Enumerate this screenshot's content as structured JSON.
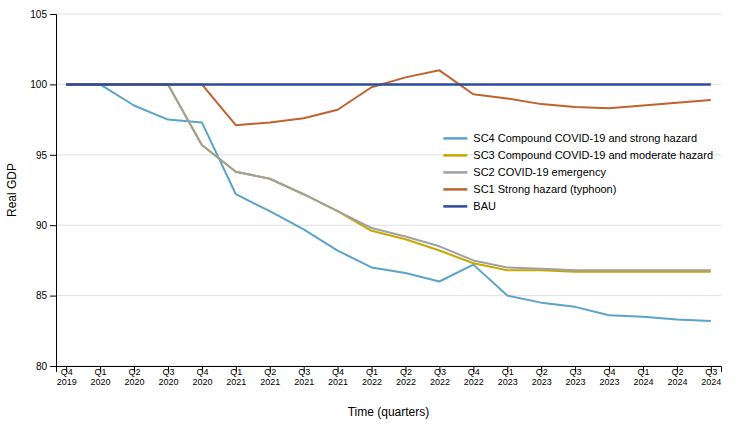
{
  "chart_data": {
    "type": "line",
    "x_label": "Time (quarters)",
    "y_label": "Real GDP",
    "categories": [
      "Q4\n2019",
      "Q1\n2020",
      "Q2\n2020",
      "Q3\n2020",
      "Q4\n2020",
      "Q1\n2021",
      "Q2\n2021",
      "Q3\n2021",
      "Q4\n2021",
      "Q1\n2022",
      "Q2\n2022",
      "Q3\n2022",
      "Q4\n2022",
      "Q1\n2023",
      "Q2\n2023",
      "Q3\n2023",
      "Q4\n2023",
      "Q1\n2024",
      "Q2\n2024",
      "Q3\n2024"
    ],
    "series": [
      {
        "name": "SC4 Compound COVID-19 and strong hazard",
        "color": "#5ba3c9",
        "values": [
          100,
          100,
          98.5,
          97.5,
          97.3,
          92.2,
          91.0,
          89.7,
          88.2,
          87.0,
          86.6,
          86.0,
          87.2,
          85.0,
          84.5,
          84.2,
          83.6,
          83.5,
          83.3,
          83.2
        ]
      },
      {
        "name": "SC3 Compound COVID-19 and moderate hazard",
        "color": "#c8a800",
        "values": [
          100,
          100,
          100,
          100,
          95.7,
          93.8,
          93.3,
          92.2,
          91.0,
          89.6,
          89.0,
          88.2,
          87.3,
          86.8,
          86.8,
          86.7,
          86.7,
          86.7,
          86.7,
          86.7
        ]
      },
      {
        "name": "SC2 COVID-19 emergency",
        "color": "#a0a0a0",
        "values": [
          100,
          100,
          100,
          100,
          95.7,
          93.8,
          93.3,
          92.2,
          91.0,
          89.8,
          89.2,
          88.5,
          87.5,
          87.0,
          86.9,
          86.8,
          86.8,
          86.8,
          86.8,
          86.8
        ]
      },
      {
        "name": "SC1 Strong hazard (typhoon)",
        "color": "#c0622e",
        "values": [
          100,
          100,
          100,
          100,
          100,
          97.1,
          97.3,
          97.6,
          98.2,
          99.8,
          100.5,
          101.0,
          99.3,
          99.0,
          98.6,
          98.4,
          98.3,
          98.5,
          98.7,
          98.9
        ]
      },
      {
        "name": "BAU",
        "color": "#2e4a9e",
        "values": [
          100,
          100,
          100,
          100,
          100,
          100,
          100,
          100,
          100,
          100,
          100,
          100,
          100,
          100,
          100,
          100,
          100,
          100,
          100,
          100
        ]
      }
    ],
    "ylim": [
      80,
      105
    ],
    "yticks": [
      80,
      85,
      90,
      95,
      100,
      105
    ],
    "grid": true,
    "legend": "right"
  }
}
